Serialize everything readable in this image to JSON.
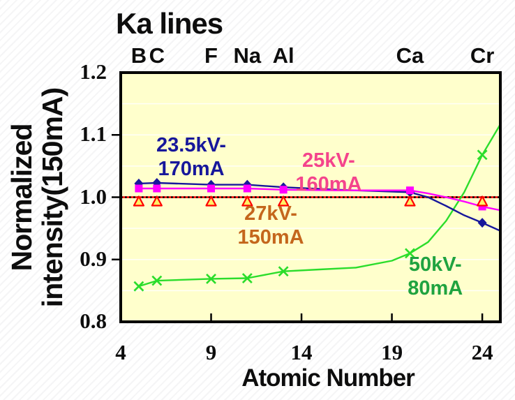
{
  "chart_data": {
    "type": "line",
    "title": "Ka lines",
    "xlabel": "Atomic Number",
    "ylabel": "Normalized intensity(150mA)",
    "ylabel_lines": [
      "Normalized",
      "intensity(150mA)"
    ],
    "xlim": [
      4,
      25
    ],
    "ylim": [
      0.8,
      1.2
    ],
    "x_ticks": [
      4,
      9,
      14,
      19,
      24
    ],
    "y_ticks": [
      1.2,
      1.1,
      1.0,
      0.9,
      0.8
    ],
    "y_tick_labels": [
      "1.2",
      "1.1",
      "1.0",
      "0.9",
      "0.8"
    ],
    "minor_grid_step": 0.05,
    "grid_color": "#FFFFFF",
    "plot_bg": "#FFFFCC",
    "axis_color": "#000000",
    "element_labels": [
      {
        "text": "B",
        "z": 5
      },
      {
        "text": "C",
        "z": 6
      },
      {
        "text": "F",
        "z": 9
      },
      {
        "text": "Na",
        "z": 11
      },
      {
        "text": "Al",
        "z": 13
      },
      {
        "text": "Ca",
        "z": 20
      },
      {
        "text": "Cr",
        "z": 24
      }
    ],
    "reference_line": {
      "v": 1.0,
      "color": "#000000",
      "style": "dotted"
    },
    "series": [
      {
        "name": "23.5kV-170mA",
        "color": "#17179B",
        "marker": "diamond",
        "x": [
          5,
          6,
          9,
          11,
          13,
          20,
          24
        ],
        "values": [
          1.022,
          1.023,
          1.02,
          1.02,
          1.016,
          1.008,
          0.959
        ],
        "curve": [
          [
            5,
            1.022
          ],
          [
            6,
            1.023
          ],
          [
            9,
            1.02
          ],
          [
            11,
            1.02
          ],
          [
            13,
            1.016
          ],
          [
            16,
            1.012
          ],
          [
            18,
            1.01
          ],
          [
            20,
            1.008
          ],
          [
            21,
            1.0
          ],
          [
            22,
            0.986
          ],
          [
            23,
            0.971
          ],
          [
            24,
            0.959
          ],
          [
            25,
            0.946
          ]
        ]
      },
      {
        "name": "25kV-160mA",
        "color": "#FF00FF",
        "marker": "square",
        "x": [
          5,
          6,
          9,
          11,
          13,
          20,
          24
        ],
        "values": [
          1.014,
          1.014,
          1.014,
          1.014,
          1.012,
          1.011,
          0.985
        ],
        "curve": [
          [
            5,
            1.014
          ],
          [
            6,
            1.014
          ],
          [
            9,
            1.014
          ],
          [
            11,
            1.014
          ],
          [
            13,
            1.012
          ],
          [
            16,
            1.011
          ],
          [
            20,
            1.011
          ],
          [
            21,
            1.006
          ],
          [
            22,
            1.0
          ],
          [
            23,
            0.993
          ],
          [
            24,
            0.985
          ],
          [
            25,
            0.979
          ]
        ]
      },
      {
        "name": "27kV-150mA",
        "color": "#FF0000",
        "marker": "triangle",
        "marker_fill": "#FFF066",
        "x": [
          5,
          6,
          9,
          11,
          13,
          20,
          24
        ],
        "values": [
          1.0,
          1.0,
          1.0,
          1.0,
          1.0,
          1.0,
          1.0
        ],
        "curve": [
          [
            4,
            1.0
          ],
          [
            25,
            1.0
          ]
        ]
      },
      {
        "name": "50kV-80mA",
        "color": "#2BDD2B",
        "marker": "x",
        "x": [
          5,
          6,
          9,
          11,
          13,
          20,
          24
        ],
        "values": [
          0.857,
          0.866,
          0.869,
          0.87,
          0.881,
          0.91,
          1.068
        ],
        "curve": [
          [
            5,
            0.857
          ],
          [
            6,
            0.866
          ],
          [
            9,
            0.869
          ],
          [
            11,
            0.87
          ],
          [
            13,
            0.881
          ],
          [
            15,
            0.884
          ],
          [
            17,
            0.887
          ],
          [
            19,
            0.898
          ],
          [
            20,
            0.91
          ],
          [
            21,
            0.928
          ],
          [
            22,
            0.962
          ],
          [
            23,
            1.008
          ],
          [
            24,
            1.068
          ],
          [
            25,
            1.117
          ]
        ]
      }
    ],
    "annotations": [
      {
        "series": "23.5kV-170mA",
        "lines": [
          "23.5kV-",
          "170mA"
        ],
        "color": "#17179B",
        "z": 7.9,
        "v": 1.064
      },
      {
        "series": "25kV-160mA",
        "lines": [
          "25kV-",
          "160mA"
        ],
        "color": "#F4448C",
        "z": 15.5,
        "v": 1.04
      },
      {
        "series": "27kV-150mA",
        "lines": [
          "27kV-",
          "150mA"
        ],
        "color": "#C4661C",
        "z": 12.3,
        "v": 0.955
      },
      {
        "series": "50kV-80mA",
        "lines": [
          "50kV-",
          "80mA"
        ],
        "color": "#1FA33F",
        "z": 21.4,
        "v": 0.873
      }
    ]
  }
}
